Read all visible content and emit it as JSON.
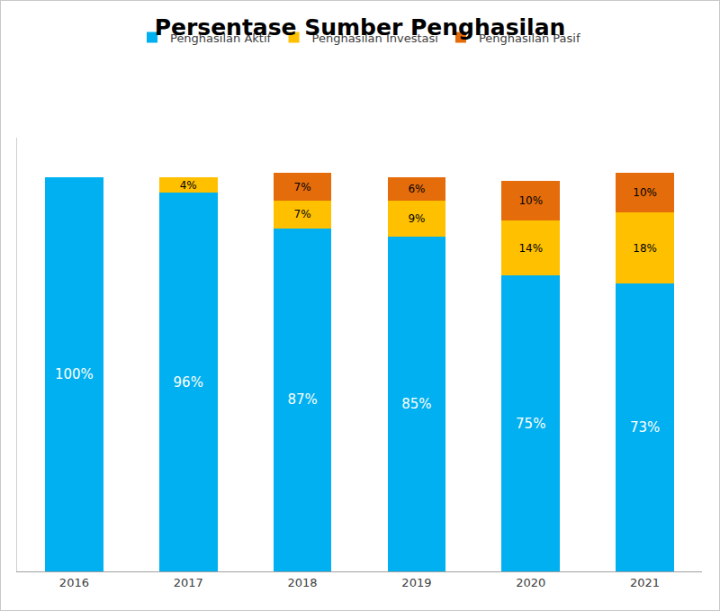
{
  "chart_data": {
    "type": "bar",
    "title": "Persentase Sumber Penghasilan",
    "categories": [
      "2016",
      "2017",
      "2018",
      "2019",
      "2020",
      "2021"
    ],
    "series": [
      {
        "name": "Penghasilan Aktif",
        "color": "#00b0f0",
        "values": [
          100,
          96,
          87,
          85,
          75,
          73
        ],
        "value_labels": [
          "100%",
          "96%",
          "87%",
          "85%",
          "75%",
          "73%"
        ]
      },
      {
        "name": "Penghasilan Investasi",
        "color": "#ffc000",
        "values": [
          null,
          4,
          7,
          9,
          14,
          18
        ],
        "value_labels": [
          null,
          "4%",
          "7%",
          "9%",
          "14%",
          "18%"
        ]
      },
      {
        "name": "Penghasilan Pasif",
        "color": "#e46c0a",
        "values": [
          null,
          null,
          7,
          6,
          10,
          10
        ],
        "value_labels": [
          null,
          null,
          "7%",
          "6%",
          "10%",
          "10%"
        ]
      }
    ],
    "stacked": true,
    "data_labels": true,
    "legend": "top",
    "tick_labels": "x",
    "grid": false,
    "ylim": [
      0,
      110
    ]
  }
}
